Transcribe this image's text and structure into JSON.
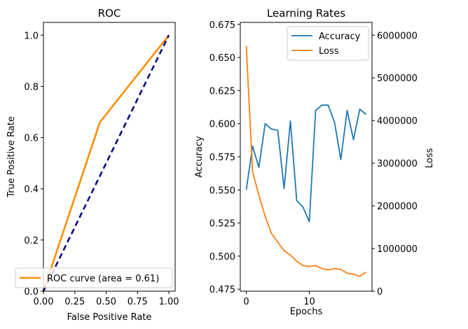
{
  "chart_data": [
    {
      "type": "line",
      "title": "ROC",
      "xlabel": "False Positive Rate",
      "ylabel": "True Positive Rate",
      "xlim": [
        0.0,
        1.05
      ],
      "ylim": [
        0.0,
        1.05
      ],
      "xticks": [
        0.0,
        0.25,
        0.5,
        0.75,
        1.0
      ],
      "xtick_labels": [
        "0.00",
        "0.25",
        "0.50",
        "0.75",
        "1.00"
      ],
      "yticks": [
        0.0,
        0.2,
        0.4,
        0.6,
        0.8,
        1.0
      ],
      "ytick_labels": [
        "0.0",
        "0.2",
        "0.4",
        "0.6",
        "0.8",
        "1.0"
      ],
      "series": [
        {
          "name": "ROC curve (area = 0.61)",
          "color": "#ff8c00",
          "x": [
            0.0,
            0.45,
            1.0
          ],
          "y": [
            0.0,
            0.66,
            1.0
          ]
        },
        {
          "color": "#000080",
          "style": "dashed",
          "x": [
            0.0,
            1.0
          ],
          "y": [
            0.0,
            1.0
          ]
        }
      ],
      "legend_position": "lower-right",
      "grid": false
    },
    {
      "type": "line",
      "title": "Learning Rates",
      "xlabel": "Epochs",
      "ylabel": "Accuracy",
      "y2label": "Loss",
      "xlim": [
        -0.95,
        19.95
      ],
      "ylim": [
        0.4735,
        0.6765
      ],
      "y2lim": [
        0,
        6300000
      ],
      "xticks": [
        0,
        10
      ],
      "xtick_labels": [
        "0",
        "10"
      ],
      "yticks": [
        0.475,
        0.5,
        0.525,
        0.55,
        0.575,
        0.6,
        0.625,
        0.65,
        0.675
      ],
      "ytick_labels": [
        "0.475",
        "0.500",
        "0.525",
        "0.550",
        "0.575",
        "0.600",
        "0.625",
        "0.650",
        "0.675"
      ],
      "y2ticks": [
        0,
        1000000,
        2000000,
        3000000,
        4000000,
        5000000,
        6000000
      ],
      "y2tick_labels": [
        "0",
        "1000000",
        "2000000",
        "3000000",
        "4000000",
        "5000000",
        "6000000"
      ],
      "series": [
        {
          "name": "Accuracy",
          "color": "#1f77b4",
          "axis": "left",
          "x": [
            0,
            1,
            2,
            3,
            4,
            5,
            6,
            7,
            8,
            9,
            10,
            11,
            12,
            13,
            14,
            15,
            16,
            17,
            18,
            19
          ],
          "y": [
            0.55,
            0.583,
            0.567,
            0.6,
            0.596,
            0.595,
            0.551,
            0.602,
            0.542,
            0.537,
            0.526,
            0.61,
            0.614,
            0.614,
            0.601,
            0.573,
            0.61,
            0.588,
            0.611,
            0.607
          ]
        },
        {
          "name": "Loss",
          "color": "#ff7f0e",
          "axis": "right",
          "x": [
            0,
            1,
            2,
            3,
            4,
            5,
            6,
            7,
            8,
            9,
            10,
            11,
            12,
            13,
            14,
            15,
            16,
            17,
            18,
            19
          ],
          "y": [
            5750000,
            2800000,
            2250000,
            1750000,
            1350000,
            1150000,
            950000,
            850000,
            700000,
            600000,
            580000,
            600000,
            530000,
            500000,
            530000,
            510000,
            420000,
            400000,
            350000,
            450000
          ]
        }
      ],
      "legend_position": "top-right",
      "grid": false
    }
  ]
}
